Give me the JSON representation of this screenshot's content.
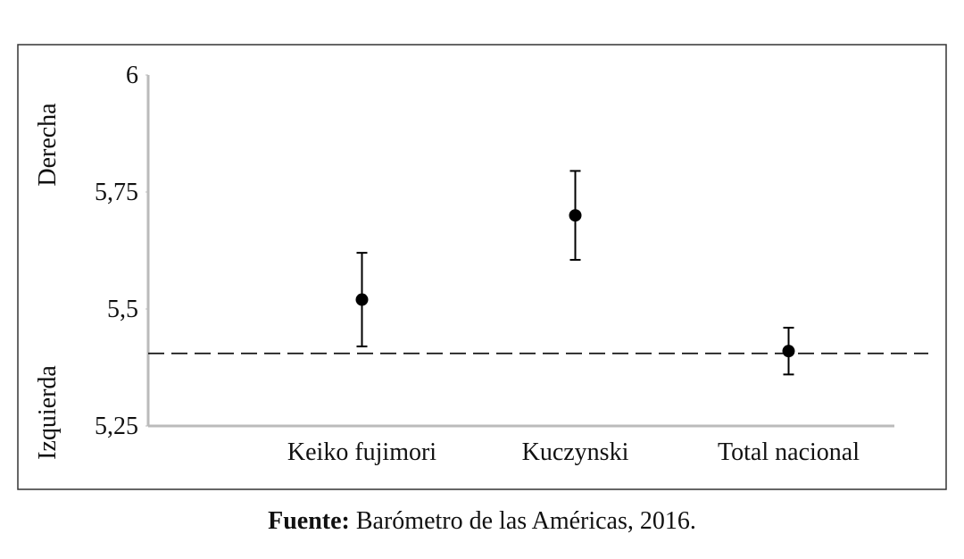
{
  "chart_data": {
    "type": "errorbar",
    "y_label_top": "Derecha",
    "y_label_bottom": "Izquierda",
    "categories": [
      "Keiko fujimori",
      "Kuczynski",
      "Total nacional"
    ],
    "values": [
      5.52,
      5.7,
      5.41
    ],
    "errors": [
      0.1,
      0.095,
      0.05
    ],
    "color": "#000000",
    "reference_line": 5.405,
    "ylim": [
      5.25,
      6
    ],
    "yticks": [
      {
        "value": 5.25,
        "label": "5,25"
      },
      {
        "value": 5.5,
        "label": "5,5"
      },
      {
        "value": 5.75,
        "label": "5,75"
      },
      6
    ],
    "source_label": "Fuente:",
    "source_text": "Barómetro de las Américas, 2016."
  }
}
